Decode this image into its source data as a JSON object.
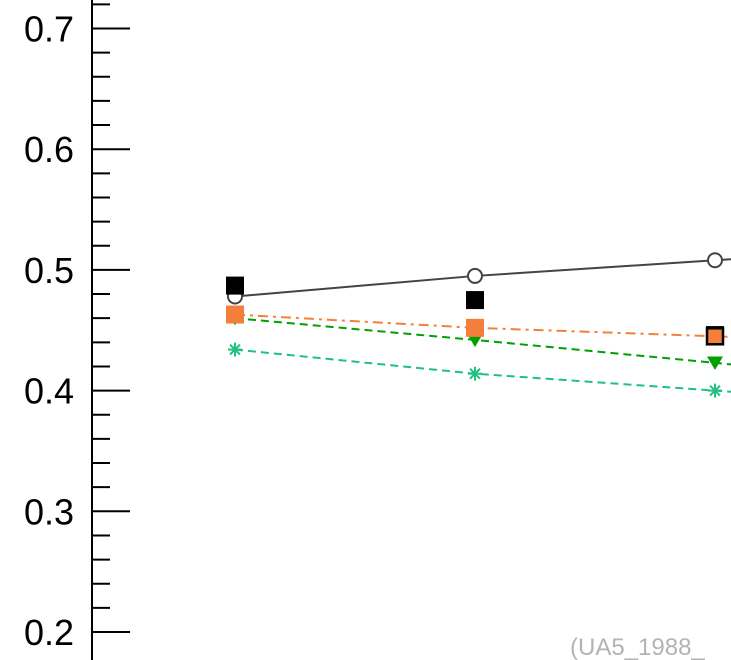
{
  "chart_data": {
    "type": "line",
    "title": "",
    "xlabel": "",
    "ylabel": "",
    "x": [
      1,
      2,
      3
    ],
    "xlim": [
      0.25,
      3.07
    ],
    "ylim": [
      0.19,
      0.735
    ],
    "y_major_ticks": [
      0.2,
      0.3,
      0.4,
      0.5,
      0.6,
      0.7
    ],
    "y_tick_labels": [
      "0.2",
      "0.3",
      "0.4",
      "0.5",
      "0.6",
      "0.7"
    ],
    "y_minor_step": 0.02,
    "grid": false,
    "legend": "none",
    "series": [
      {
        "marker": "open-circle",
        "line_style": "solid",
        "color": "#444444",
        "values": [
          0.478,
          0.495,
          0.508
        ]
      },
      {
        "marker": "filled-square",
        "line_style": "none",
        "color": "#000000",
        "values": [
          0.487,
          0.475,
          0.446
        ]
      },
      {
        "marker": "filled-square",
        "line_style": "dash-dot",
        "color": "#f47f3a",
        "values": [
          0.463,
          0.452,
          0.445
        ]
      },
      {
        "marker": "filled-triangle-down",
        "line_style": "dashed",
        "color": "#00a000",
        "values": [
          0.46,
          0.442,
          0.423
        ]
      },
      {
        "marker": "asterisk",
        "line_style": "dashed",
        "color": "#20c080",
        "values": [
          0.434,
          0.414,
          0.4
        ]
      }
    ],
    "annotation": "(UA5_1988_"
  }
}
